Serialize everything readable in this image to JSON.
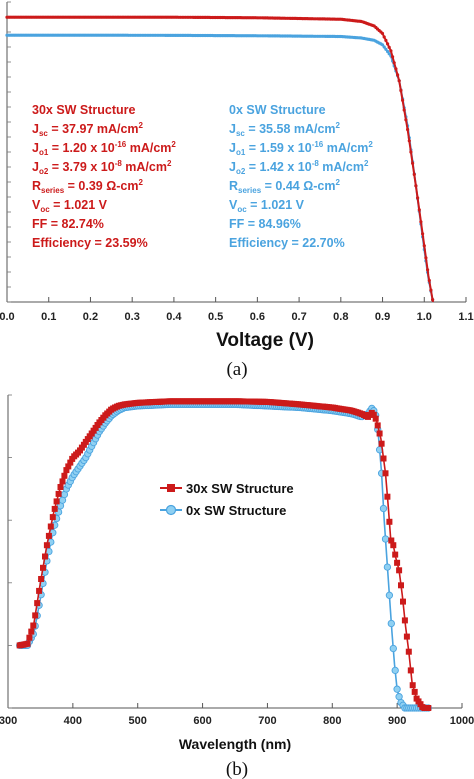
{
  "colors": {
    "red": "#cc1a1a",
    "blue": "#4aa3df",
    "blue_marker_fill": "#8fd0f2",
    "axis": "#555555"
  },
  "chart_data": [
    {
      "panel": "(a)",
      "type": "line",
      "xlabel": "Voltage (V)",
      "ylabel": "",
      "xlim": [
        0.0,
        1.1
      ],
      "x_ticks": [
        "0.0",
        "0.1",
        "0.2",
        "0.3",
        "0.4",
        "0.5",
        "0.6",
        "0.7",
        "0.8",
        "0.9",
        "1.0",
        "1.1"
      ],
      "ylim": [
        0,
        40
      ],
      "grid": false,
      "series": [
        {
          "name": "30x SW Structure",
          "color": "#cc1a1a",
          "params": {
            "title": "30x SW Structure",
            "jsc": "37.97 mA/cm",
            "jo1": "1.20 x 10",
            "jo1_exp": "-16",
            "jo1_unit": " mA/cm",
            "jo2": "3.79 x 10",
            "jo2_exp": "-8",
            "jo2_unit": "  mA/cm",
            "rseries": " = 0.39 Ω-cm",
            "voc": " = 1.021 V",
            "ff": "FF = 82.74%",
            "eff": "Efficiency = 23.59%"
          },
          "points": [
            [
              0.0,
              37.97
            ],
            [
              0.2,
              37.97
            ],
            [
              0.4,
              37.97
            ],
            [
              0.6,
              37.9
            ],
            [
              0.8,
              37.7
            ],
            [
              0.85,
              37.4
            ],
            [
              0.88,
              36.8
            ],
            [
              0.9,
              35.8
            ],
            [
              0.92,
              33.5
            ],
            [
              0.94,
              29.5
            ],
            [
              0.96,
              23.0
            ],
            [
              0.98,
              15.5
            ],
            [
              1.0,
              7.5
            ],
            [
              1.01,
              3.5
            ],
            [
              1.021,
              0.0
            ]
          ]
        },
        {
          "name": "0x SW Structure",
          "color": "#4aa3df",
          "params": {
            "title": "0x SW Structure",
            "jsc": "35.58 mA/cm",
            "jo1": "1.59 x 10",
            "jo1_exp": "-16",
            "jo1_unit": " mA/cm",
            "jo2": "1.42 x 10",
            "jo2_exp": "-8",
            "jo2_unit": "  mA/cm",
            "rseries": " = 0.44 Ω-cm",
            "voc": " = 1.021 V",
            "ff": "FF = 84.96%",
            "eff": "Efficiency = 22.70%"
          },
          "points": [
            [
              0.0,
              35.58
            ],
            [
              0.2,
              35.58
            ],
            [
              0.4,
              35.55
            ],
            [
              0.6,
              35.5
            ],
            [
              0.8,
              35.4
            ],
            [
              0.85,
              35.2
            ],
            [
              0.88,
              34.9
            ],
            [
              0.9,
              34.3
            ],
            [
              0.92,
              32.8
            ],
            [
              0.94,
              29.5
            ],
            [
              0.96,
              23.5
            ],
            [
              0.98,
              15.5
            ],
            [
              1.0,
              7.0
            ],
            [
              1.01,
              3.2
            ],
            [
              1.021,
              0.0
            ]
          ]
        }
      ]
    },
    {
      "panel": "(b)",
      "type": "line",
      "xlabel": "Wavelength (nm)",
      "ylabel": "",
      "xlim": [
        300,
        1000
      ],
      "x_ticks": [
        "300",
        "400",
        "500",
        "600",
        "700",
        "800",
        "900",
        "1000"
      ],
      "ylim": [
        0,
        100
      ],
      "grid": false,
      "legend": "center-right",
      "series": [
        {
          "name": "30x SW Structure",
          "color": "#cc1a1a",
          "marker": "square",
          "points": [
            [
              318,
              20
            ],
            [
              330,
              20.5
            ],
            [
              340,
              27
            ],
            [
              350,
              40
            ],
            [
              360,
              52
            ],
            [
              370,
              62
            ],
            [
              380,
              70
            ],
            [
              390,
              76
            ],
            [
              400,
              80
            ],
            [
              410,
              82
            ],
            [
              420,
              85
            ],
            [
              430,
              88
            ],
            [
              440,
              91
            ],
            [
              450,
              93.5
            ],
            [
              460,
              95.5
            ],
            [
              470,
              96.5
            ],
            [
              480,
              97
            ],
            [
              500,
              97.5
            ],
            [
              550,
              98
            ],
            [
              600,
              98
            ],
            [
              650,
              98
            ],
            [
              700,
              97.8
            ],
            [
              750,
              97
            ],
            [
              800,
              96
            ],
            [
              830,
              95
            ],
            [
              845,
              94
            ],
            [
              855,
              93
            ],
            [
              862,
              94.5
            ],
            [
              868,
              92
            ],
            [
              875,
              86
            ],
            [
              882,
              75
            ],
            [
              886,
              65
            ],
            [
              890,
              54
            ],
            [
              894,
              52
            ],
            [
              898,
              48
            ],
            [
              903,
              44
            ],
            [
              908,
              36
            ],
            [
              913,
              26
            ],
            [
              918,
              18
            ],
            [
              923,
              8
            ],
            [
              930,
              3
            ],
            [
              940,
              0
            ],
            [
              948,
              0
            ]
          ]
        },
        {
          "name": "0x SW Structure",
          "color": "#4aa3df",
          "marker": "circle",
          "points": [
            [
              318,
              20
            ],
            [
              330,
              20
            ],
            [
              340,
              24
            ],
            [
              350,
              35
            ],
            [
              360,
              47
            ],
            [
              370,
              57
            ],
            [
              380,
              64
            ],
            [
              390,
              70
            ],
            [
              400,
              74
            ],
            [
              410,
              77
            ],
            [
              420,
              80
            ],
            [
              430,
              84
            ],
            [
              440,
              88
            ],
            [
              450,
              91
            ],
            [
              460,
              93.5
            ],
            [
              470,
              95
            ],
            [
              480,
              96
            ],
            [
              500,
              96.5
            ],
            [
              550,
              97
            ],
            [
              600,
              97
            ],
            [
              650,
              97
            ],
            [
              700,
              96.5
            ],
            [
              750,
              96
            ],
            [
              800,
              95
            ],
            [
              830,
              94
            ],
            [
              845,
              93
            ],
            [
              855,
              94
            ],
            [
              862,
              96
            ],
            [
              868,
              93
            ],
            [
              872,
              85
            ],
            [
              876,
              75
            ],
            [
              880,
              60
            ],
            [
              884,
              48
            ],
            [
              888,
              36
            ],
            [
              892,
              24
            ],
            [
              896,
              14
            ],
            [
              900,
              6
            ],
            [
              905,
              2
            ],
            [
              912,
              0
            ],
            [
              948,
              0
            ]
          ]
        }
      ]
    }
  ]
}
